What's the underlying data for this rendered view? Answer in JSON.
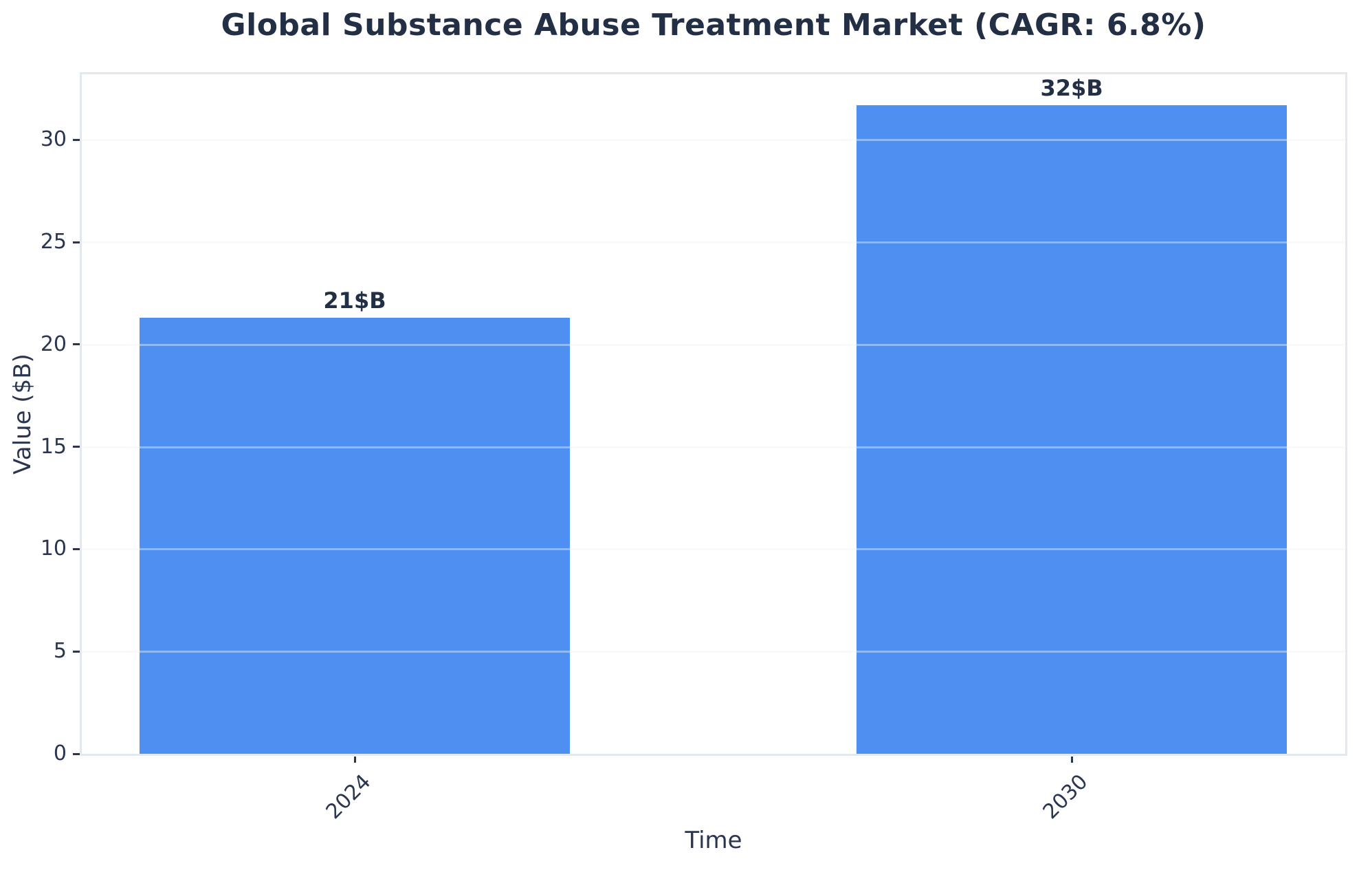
{
  "chart_data": {
    "type": "bar",
    "title": "Global Substance Abuse Treatment Market (CAGR: 6.8%)",
    "xlabel": "Time",
    "ylabel": "Value ($B)",
    "categories": [
      "2024",
      "2030"
    ],
    "values": [
      21.3,
      31.7
    ],
    "bar_value_labels": [
      "21$B",
      "32$B"
    ],
    "yticks": [
      0,
      5,
      10,
      15,
      20,
      25,
      30
    ],
    "ylim": [
      0,
      33.2
    ],
    "grid": true,
    "legend_position": "none",
    "x_tick_rotation_deg": 45,
    "colors": {
      "bar": "#4d90f2",
      "text": "#232f44",
      "tick_text": "#2a3650",
      "spine": "#e2e8f0",
      "gridline": "#f5f6f8"
    }
  }
}
